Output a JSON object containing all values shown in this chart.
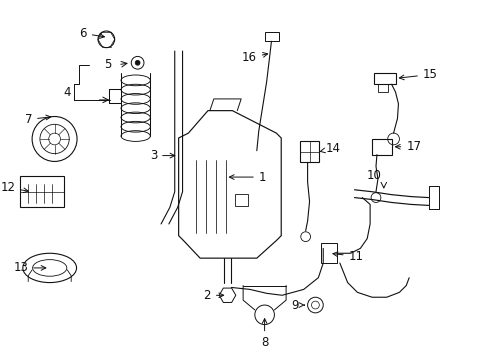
{
  "bg_color": "#ffffff",
  "line_color": "#111111",
  "figsize": [
    4.9,
    3.6
  ],
  "dpi": 100
}
